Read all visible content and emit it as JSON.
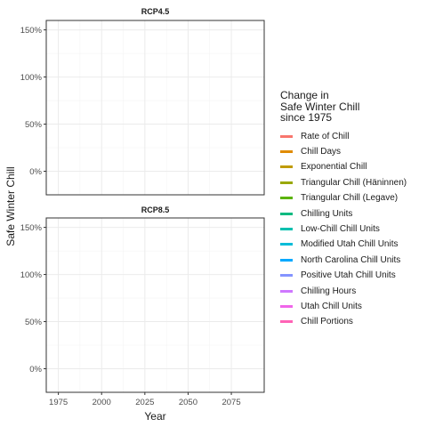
{
  "chart_data": {
    "type": "line",
    "panels": [
      {
        "title": "RCP4.5"
      },
      {
        "title": "RCP8.5"
      }
    ],
    "xlabel": "Year",
    "ylabel": "Safe Winter Chill",
    "xlim": [
      1968,
      2094
    ],
    "ylim": [
      -0.25,
      1.6
    ],
    "x_ticks": [
      1975,
      2000,
      2025,
      2050,
      2075
    ],
    "y_ticks": [
      {
        "value": 0,
        "label": "0%"
      },
      {
        "value": 0.5,
        "label": "50%"
      },
      {
        "value": 1.0,
        "label": "100%"
      },
      {
        "value": 1.5,
        "label": "150%"
      }
    ],
    "grid": true,
    "legend": {
      "title": "Change in\nSafe Winter Chill\nsince 1975",
      "placement": "right"
    },
    "series": [
      {
        "name": "Rate of Chill",
        "color": "#F8766D",
        "values": []
      },
      {
        "name": "Chill Days",
        "color": "#E08B00",
        "values": []
      },
      {
        "name": "Exponential Chill",
        "color": "#C09B00",
        "values": []
      },
      {
        "name": "Triangular Chill (Häninnen)",
        "color": "#99A800",
        "values": []
      },
      {
        "name": "Triangular Chill (Legave)",
        "color": "#5BB300",
        "values": []
      },
      {
        "name": "Chilling Units",
        "color": "#00BA80",
        "values": []
      },
      {
        "name": "Low-Chill Chill Units",
        "color": "#00C0AF",
        "values": []
      },
      {
        "name": "Modified Utah Chill Units",
        "color": "#00BCD8",
        "values": []
      },
      {
        "name": "North Carolina Chill Units",
        "color": "#00A9FF",
        "values": []
      },
      {
        "name": "Positive Utah Chill Units",
        "color": "#8494FF",
        "values": []
      },
      {
        "name": "Chilling Hours",
        "color": "#CF78FF",
        "values": []
      },
      {
        "name": "Utah Chill Units",
        "color": "#F066EA",
        "values": []
      },
      {
        "name": "Chill Portions",
        "color": "#FF63B6",
        "values": []
      }
    ]
  }
}
